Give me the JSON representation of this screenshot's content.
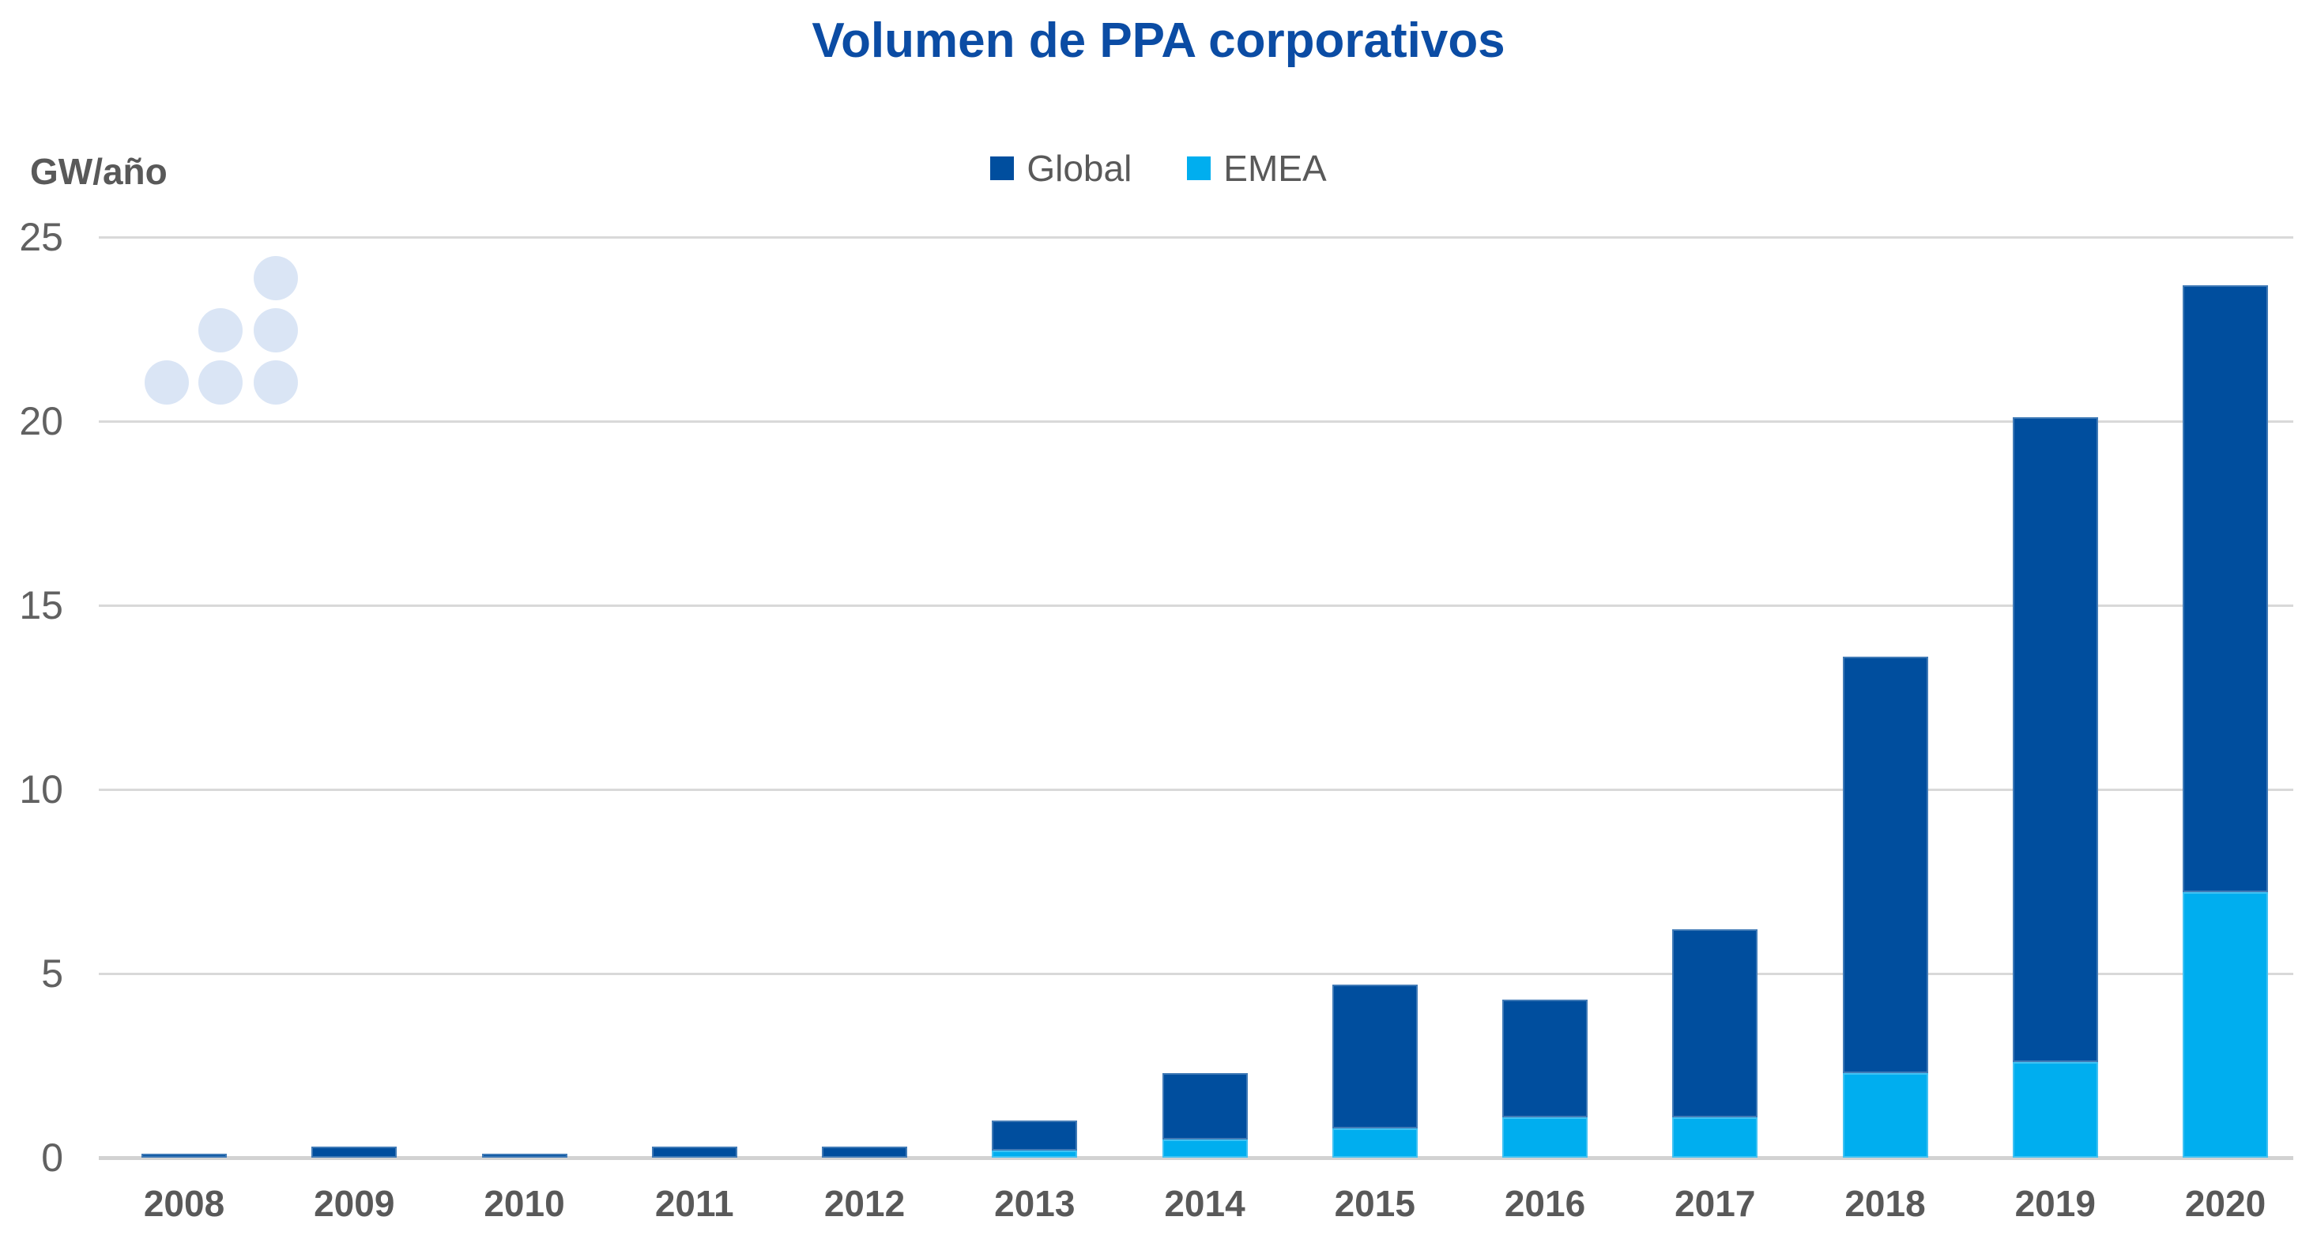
{
  "header": {
    "title": "Volumen de PPA corporativos"
  },
  "colors": {
    "title": "#0B4CA4",
    "global_bar": "#004E9E",
    "emea_bar": "#00AEEF",
    "axis_text": "#595959",
    "tick_text": "#616161",
    "gridline": "#D9D9D9",
    "baseline": "#D2D2D2",
    "brand_dots": "#DAE5F5",
    "background": "#FFFFFF"
  },
  "chart_data": {
    "type": "bar",
    "stacked": true,
    "title": "Volumen de PPA corporativos",
    "ylabel": "GW/año",
    "xlabel": "",
    "categories": [
      "2008",
      "2009",
      "2010",
      "2011",
      "2012",
      "2013",
      "2014",
      "2015",
      "2016",
      "2017",
      "2018",
      "2019",
      "2020"
    ],
    "series": [
      {
        "name": "Global",
        "color": "#004E9E",
        "values": [
          0.1,
          0.3,
          0.1,
          0.3,
          0.3,
          1.0,
          2.3,
          4.7,
          4.3,
          6.2,
          13.6,
          20.1,
          23.7
        ]
      },
      {
        "name": "EMEA",
        "color": "#00AEEF",
        "values": [
          0,
          0,
          0,
          0,
          0,
          0.2,
          0.5,
          0.8,
          1.1,
          1.1,
          2.3,
          2.6,
          7.2
        ]
      }
    ],
    "ylim": [
      0,
      25
    ],
    "yticks": [
      0,
      5,
      10,
      15,
      20,
      25
    ],
    "grid": "horizontal",
    "legend_position": "top-center"
  }
}
